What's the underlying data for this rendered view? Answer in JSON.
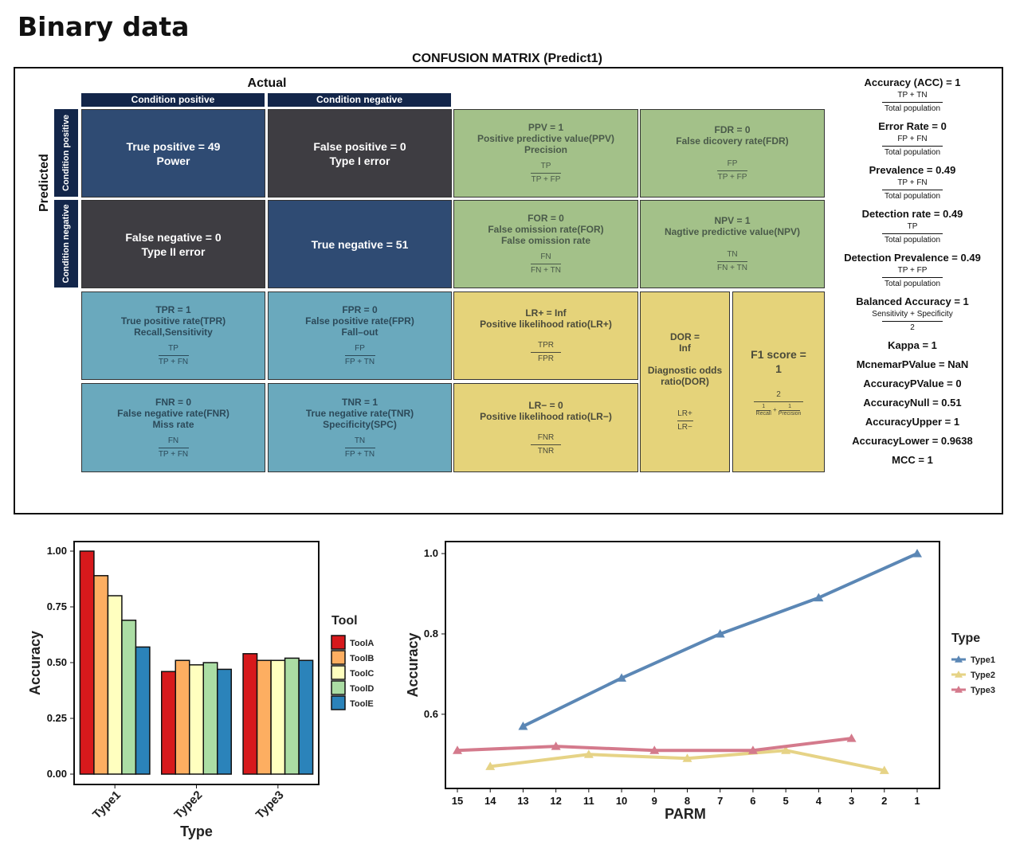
{
  "page": {
    "title": "Binary data"
  },
  "confusion_matrix": {
    "title": "CONFUSION MATRIX (Predict1)",
    "actual_label": "Actual",
    "predicted_label": "Predicted",
    "col_headers": [
      "Condition positive",
      "Condition negative"
    ],
    "row_headers": [
      "Condition positive",
      "Condition negative"
    ],
    "cells": {
      "tp": {
        "l1": "True positive = 49",
        "l2": "Power"
      },
      "fp": {
        "l1": "False positive = 0",
        "l2": "Type I error"
      },
      "fn": {
        "l1": "False negative = 0",
        "l2": "Type II error"
      },
      "tn": {
        "l1": "True negative = 51"
      },
      "ppv": {
        "l1": "PPV = 1",
        "l2": "Positive predictive value(PPV)",
        "l3": "Precision",
        "num": "TP",
        "den": "TP + FP"
      },
      "fdr": {
        "l1": "FDR = 0",
        "l2": "False dicovery rate(FDR)",
        "num": "FP",
        "den": "TP + FP"
      },
      "for": {
        "l1": "FOR = 0",
        "l2": "False omission rate(FOR)",
        "l3": "False omission rate",
        "num": "FN",
        "den": "FN + TN"
      },
      "npv": {
        "l1": "NPV = 1",
        "l2": "Nagtive predictive value(NPV)",
        "num": "TN",
        "den": "FN + TN"
      },
      "tpr": {
        "l1": "TPR = 1",
        "l2": "True positive rate(TPR)",
        "l3": "Recall,Sensitivity",
        "num": "TP",
        "den": "TP + FN"
      },
      "fpr": {
        "l1": "FPR = 0",
        "l2": "False positive rate(FPR)",
        "l3": "Fall–out",
        "num": "FP",
        "den": "FP + TN"
      },
      "fnr": {
        "l1": "FNR = 0",
        "l2": "False negative rate(FNR)",
        "l3": "Miss rate",
        "num": "FN",
        "den": "TP + FN"
      },
      "tnr": {
        "l1": "TNR = 1",
        "l2": "True negative rate(TNR)",
        "l3": "Specificity(SPC)",
        "num": "TN",
        "den": "FP + TN"
      },
      "lrp": {
        "l1": "LR+ = Inf",
        "l2": "Positive likelihood ratio(LR+)",
        "num": "TPR",
        "den": "FPR"
      },
      "lrn": {
        "l1": "LR− = 0",
        "l2": "Positive likelihood ratio(LR−)",
        "num": "FNR",
        "den": "TNR"
      },
      "dor": {
        "l1": "DOR =",
        "l2": "Inf",
        "l3": "Diagnostic odds",
        "l4": "ratio(DOR)",
        "num": "LR+",
        "den": "LR−"
      },
      "f1": {
        "l1": "F1 score =",
        "l2": "1",
        "num": "2",
        "den_a_num": "1",
        "den_a_den": "Recall",
        "den_plus": "+",
        "den_b_num": "1",
        "den_b_den": "Precision"
      }
    },
    "metrics": [
      {
        "label": "Accuracy (ACC) = 1",
        "num": "TP + TN",
        "den": "Total population"
      },
      {
        "label": "Error Rate = 0",
        "num": "FP + FN",
        "den": "Total population"
      },
      {
        "label": "Prevalence = 0.49",
        "num": "TP + FN",
        "den": "Total population"
      },
      {
        "label": "Detection rate = 0.49",
        "num": "TP",
        "den": "Total population"
      },
      {
        "label": "Detection Prevalence = 0.49",
        "num": "TP + FP",
        "den": "Total population"
      },
      {
        "label": "Balanced Accuracy = 1",
        "num": "Sensitivity + Specificity",
        "den": "2"
      },
      {
        "label": "Kappa = 1"
      },
      {
        "label": "McnemarPValue = NaN"
      },
      {
        "label": "AccuracyPValue = 0"
      },
      {
        "label": "AccuracyNull = 0.51"
      },
      {
        "label": "AccuracyUpper = 1"
      },
      {
        "label": "AccuracyLower = 0.9638"
      },
      {
        "label": "MCC  = 1"
      }
    ]
  },
  "chart_data": [
    {
      "type": "bar",
      "xlabel": "Type",
      "ylabel": "Accuracy",
      "legend_title": "Tool",
      "legend_position": "right",
      "ylim": [
        0,
        1.0
      ],
      "yticks": [
        "0.00",
        "0.25",
        "0.50",
        "0.75",
        "1.00"
      ],
      "categories": [
        "Type1",
        "Type2",
        "Type3"
      ],
      "series": [
        {
          "name": "ToolA",
          "color": "#d7191c",
          "values": [
            1.0,
            0.46,
            0.54
          ]
        },
        {
          "name": "ToolB",
          "color": "#fdae61",
          "values": [
            0.89,
            0.51,
            0.51
          ]
        },
        {
          "name": "ToolC",
          "color": "#ffffbf",
          "values": [
            0.8,
            0.49,
            0.51
          ]
        },
        {
          "name": "ToolD",
          "color": "#abdda4",
          "values": [
            0.69,
            0.5,
            0.52
          ]
        },
        {
          "name": "ToolE",
          "color": "#2b83ba",
          "values": [
            0.57,
            0.47,
            0.51
          ]
        }
      ]
    },
    {
      "type": "line",
      "xlabel": "PARM",
      "ylabel": "Accuracy",
      "legend_title": "Type",
      "legend_position": "right",
      "x": [
        15,
        14,
        13,
        12,
        11,
        10,
        9,
        8,
        7,
        6,
        5,
        4,
        3,
        2,
        1
      ],
      "x_reversed": true,
      "yticks": [
        "0.6",
        "0.8",
        "1.0"
      ],
      "ylim": [
        0.445,
        1.02
      ],
      "series": [
        {
          "name": "Type1",
          "color": "#5b87b5",
          "x": [
            13,
            10,
            7,
            4,
            1
          ],
          "values": [
            0.57,
            0.69,
            0.8,
            0.89,
            1.0
          ]
        },
        {
          "name": "Type2",
          "color": "#e6d386",
          "x": [
            14,
            11,
            8,
            5,
            2
          ],
          "values": [
            0.47,
            0.5,
            0.49,
            0.51,
            0.46
          ]
        },
        {
          "name": "Type3",
          "color": "#d47a8c",
          "x": [
            15,
            12,
            9,
            6,
            3
          ],
          "values": [
            0.51,
            0.52,
            0.51,
            0.51,
            0.54
          ]
        }
      ]
    }
  ]
}
